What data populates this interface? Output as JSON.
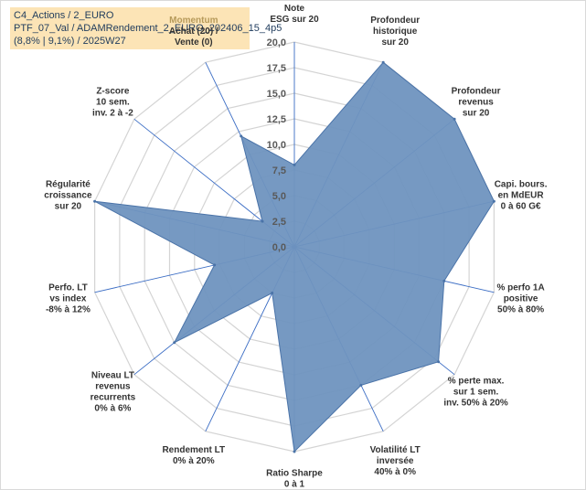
{
  "info": {
    "line1": "C4_Actions / 2_EURO",
    "line2": "PTF_07_Val / ADAMRendement_2_EURO_202406_15_4p5",
    "line3": "(8,8% | 9,1%) / 2025W27"
  },
  "chart_data": {
    "type": "radar",
    "rlim": [
      0,
      20
    ],
    "ticks": [
      "0,0",
      "2,5",
      "5,0",
      "7,5",
      "10,0",
      "12,5",
      "15,0",
      "17,5",
      "20,0"
    ],
    "grid": true,
    "colors": {
      "fill": "#6f93bf",
      "line": "#4a73a8",
      "grid": "#d4d4d4",
      "spoke": "#3a6cc4"
    },
    "axes": [
      {
        "lines": [
          "Note",
          "ESG sur 20"
        ],
        "value": 8.0,
        "highlight": ""
      },
      {
        "lines": [
          "Profondeur",
          "historique",
          "sur 20"
        ],
        "value": 20.0,
        "highlight": ""
      },
      {
        "lines": [
          "Profondeur",
          "revenus",
          "sur 20"
        ],
        "value": 20.0,
        "highlight": ""
      },
      {
        "lines": [
          "Capi. bours.",
          "en MdEUR",
          "0 à 60 G€"
        ],
        "value": 20.0,
        "highlight": ""
      },
      {
        "lines": [
          "% perfo 1A",
          "positive",
          "50% à 80%"
        ],
        "value": 15.0,
        "highlight": ""
      },
      {
        "lines": [
          "% perte max.",
          "sur 1 sem.",
          "inv. 50% à 20%"
        ],
        "value": 18.0,
        "highlight": ""
      },
      {
        "lines": [
          "Volatilité LT",
          "inversée",
          "40% à 0%"
        ],
        "value": 15.0,
        "highlight": ""
      },
      {
        "lines": [
          "Ratio Sharpe",
          "0 à 1"
        ],
        "value": 20.0,
        "highlight": ""
      },
      {
        "lines": [
          "Rendement LT",
          "0% à 20%"
        ],
        "value": 5.0,
        "highlight": ""
      },
      {
        "lines": [
          "Niveau LT",
          "revenus",
          "recurrents",
          "0% à 6%"
        ],
        "value": 15.0,
        "highlight": ""
      },
      {
        "lines": [
          "Perfo. LT",
          "vs index",
          "-8% à 12%"
        ],
        "value": 8.0,
        "highlight": ""
      },
      {
        "lines": [
          "Régularité",
          "croissance",
          "sur 20"
        ],
        "value": 20.0,
        "highlight": ""
      },
      {
        "lines": [
          "Z-score",
          "10 sem.",
          "inv. 2 à -2"
        ],
        "value": 4.0,
        "highlight": ""
      },
      {
        "lines": [
          "Achat (20) /",
          "Vente (0)"
        ],
        "value": 12.0,
        "highlight": "Momentum"
      }
    ]
  }
}
